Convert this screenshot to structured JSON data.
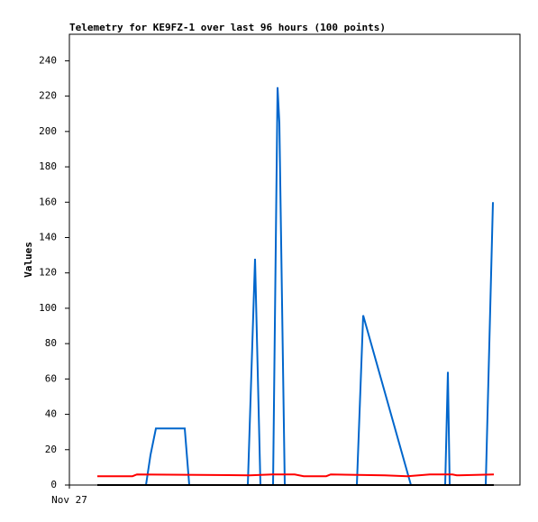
{
  "chart_data": {
    "type": "line",
    "title": "Telemetry for KE9FZ-1 over last 96 hours (100 points)",
    "y_label": "Values",
    "xlim": [
      0,
      100
    ],
    "xticks": [
      {
        "value": 0,
        "label": "Nov 27"
      }
    ],
    "ylim": [
      0,
      255
    ],
    "yticks": [
      0,
      20,
      40,
      60,
      80,
      100,
      120,
      140,
      160,
      180,
      200,
      220,
      240
    ],
    "series": [
      {
        "color": "#0066cc",
        "x": [
          17,
          18,
          19.2,
          25.6,
          26.6,
          39.6,
          41.2,
          42.4,
          45.2,
          46.2,
          46.6,
          47.8,
          63.8,
          65.2,
          75.8,
          83.4,
          84,
          84.4,
          92.4,
          94
        ],
        "values": [
          0,
          17,
          32,
          32,
          0,
          0,
          128,
          0,
          0,
          225,
          205,
          0,
          0,
          96,
          0,
          0,
          64,
          0,
          0,
          160
        ]
      },
      {
        "color": "#ff0000",
        "x": [
          6.2,
          14,
          15,
          40,
          45,
          50,
          52,
          57,
          58,
          70,
          75,
          80,
          85,
          86,
          94.2
        ],
        "values": [
          5,
          5,
          6,
          5.5,
          6,
          6,
          5,
          5,
          6,
          5.5,
          5,
          6,
          6,
          5.5,
          6
        ]
      },
      {
        "color": "#000000",
        "x": [
          6.2,
          94.2
        ],
        "values": [
          0,
          0
        ]
      }
    ]
  }
}
